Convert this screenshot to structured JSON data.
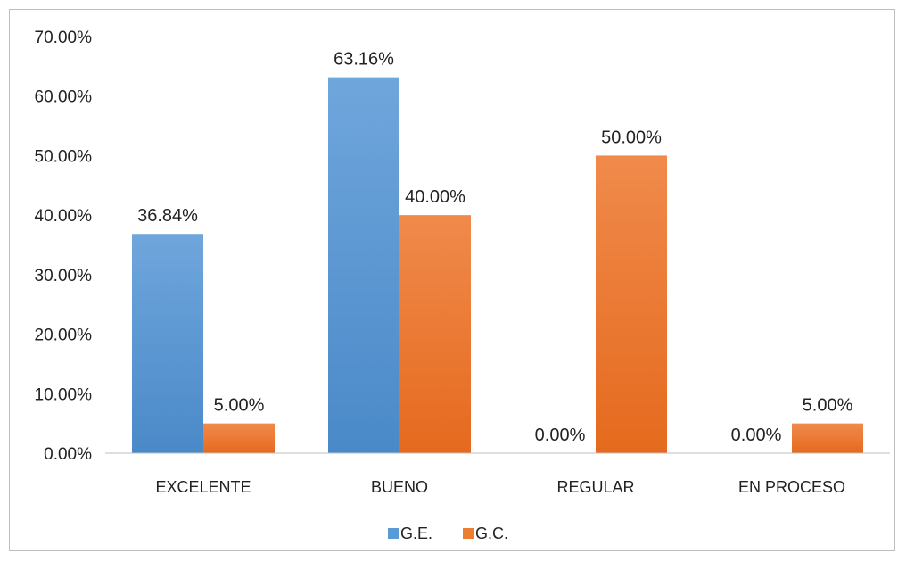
{
  "chart_data": {
    "type": "bar",
    "title": "",
    "xlabel": "",
    "ylabel": "",
    "categories": [
      "EXCELENTE",
      "BUENO",
      "REGULAR",
      "EN PROCESO"
    ],
    "series": [
      {
        "name": "G.E.",
        "values": [
          36.84,
          63.16,
          0.0,
          0.0
        ],
        "labels": [
          "36.84%",
          "63.16%",
          "0.00%",
          "0.00%"
        ],
        "color": "#5b9bd5"
      },
      {
        "name": "G.C.",
        "values": [
          5.0,
          40.0,
          50.0,
          5.0
        ],
        "labels": [
          "5.00%",
          "40.00%",
          "50.00%",
          "5.00%"
        ],
        "color": "#ed7d31"
      }
    ],
    "ylim": [
      0,
      70
    ],
    "yticks": [
      "0.00%",
      "10.00%",
      "20.00%",
      "30.00%",
      "40.00%",
      "50.00%",
      "60.00%",
      "70.00%"
    ],
    "grid": false,
    "legend": "bottom"
  }
}
